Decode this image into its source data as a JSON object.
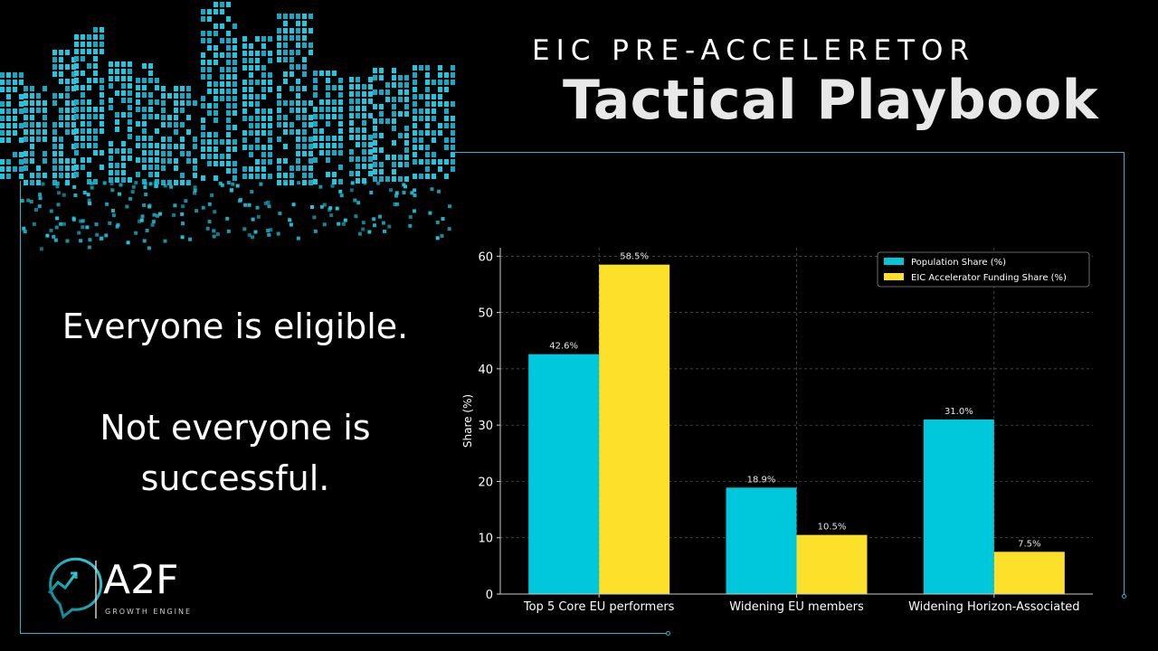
{
  "header": {
    "kicker": "EIC PRE-ACCELERETOR",
    "title": "Tactical Playbook"
  },
  "message": {
    "line1": "Everyone is eligible.",
    "line2": "Not everyone is",
    "line3": "successful."
  },
  "brand": {
    "name": "A2F",
    "tagline": "GROWTH ENGINE",
    "icon": "trend-arrow-speech-bubble-icon",
    "accent_color": "#1fb8c9"
  },
  "chart_data": {
    "type": "bar",
    "categories": [
      "Top 5 Core EU performers",
      "Widening EU members",
      "Widening Horizon-Associated"
    ],
    "series": [
      {
        "name": "Population Share (%)",
        "values": [
          42.6,
          18.9,
          31.0
        ],
        "labels": [
          "42.6%",
          "18.9%",
          "31.0%"
        ],
        "color": "#00c8dc"
      },
      {
        "name": "EIC Accelerator Funding Share (%)",
        "values": [
          58.5,
          10.5,
          7.5
        ],
        "labels": [
          "58.5%",
          "10.5%",
          "7.5%"
        ],
        "color": "#fde02a"
      }
    ],
    "ylabel": "Share (%)",
    "xlabel": "",
    "ylim": [
      0,
      61.5
    ],
    "yticks": [
      0,
      10,
      20,
      30,
      40,
      50,
      60
    ],
    "grid": true,
    "legend": "top-right"
  }
}
